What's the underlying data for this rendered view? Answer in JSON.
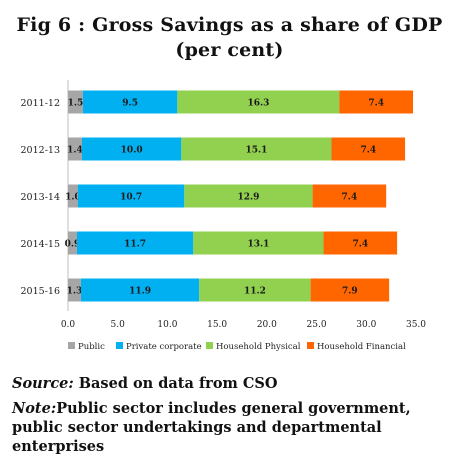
{
  "header": {
    "title_line1": "Fig 6 : Gross Savings as a share of GDP",
    "title_line2": "(per cent)"
  },
  "chart_data": {
    "type": "bar",
    "orientation": "horizontal",
    "stacked": true,
    "categories": [
      "2011-12",
      "2012-13",
      "2013-14",
      "2014-15",
      "2015-16"
    ],
    "series": [
      {
        "name": "Public",
        "color": "#a6a6a6",
        "values": [
          1.5,
          1.4,
          1.0,
          0.9,
          1.3
        ],
        "labels": [
          "1.5",
          "1.4",
          "1.0",
          "0.9",
          "1.3"
        ]
      },
      {
        "name": "Private corporate",
        "color": "#00b0f0",
        "values": [
          9.5,
          10.0,
          10.7,
          11.7,
          11.9
        ],
        "labels": [
          "9.5",
          "10.0",
          "10.7",
          "11.7",
          "11.9"
        ]
      },
      {
        "name": "Household Physical",
        "color": "#92d050",
        "values": [
          16.3,
          15.1,
          12.9,
          13.1,
          11.2
        ],
        "labels": [
          "16.3",
          "15.1",
          "12.9",
          "13.1",
          "11.2"
        ]
      },
      {
        "name": "Household Financial",
        "color": "#ff6600",
        "values": [
          7.4,
          7.4,
          7.4,
          7.4,
          7.9
        ],
        "labels": [
          "7.4",
          "7.4",
          "7.4",
          "7.4",
          "7.9"
        ]
      }
    ],
    "xlim": [
      0,
      35
    ],
    "xticks": [
      "0.0",
      "5.0",
      "10.0",
      "15.0",
      "20.0",
      "25.0",
      "30.0",
      "35.0"
    ],
    "grid": false,
    "legend_position": "bottom"
  },
  "footer": {
    "source_lead": "Source:",
    "source_text": " Based on data from CSO",
    "note_lead": "Note:",
    "note_text": "Public sector includes general government, public sector undertakings and departmental enterprises"
  }
}
